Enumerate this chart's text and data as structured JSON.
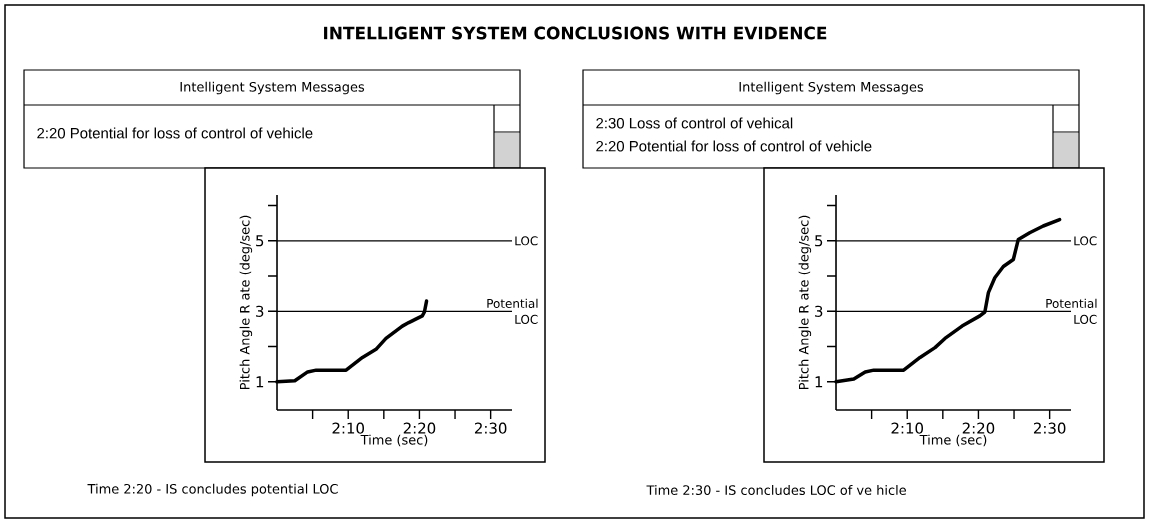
{
  "chart_data": [
    {
      "type": "line",
      "title": "INTELLIGENT SYSTEM CONCLUSIONS WITH EVIDENCE",
      "xlabel": "Time (sec)",
      "ylabel": "Pitch Angle R ate (deg/sec)",
      "color": "#000000",
      "x": [
        120,
        122.5,
        124.3,
        125.5,
        129.7,
        132,
        133.9,
        135.3,
        137.6,
        138.5,
        140.4,
        140.7,
        141
      ],
      "values": [
        1.0,
        1.03,
        1.28,
        1.33,
        1.33,
        1.69,
        1.92,
        2.23,
        2.58,
        2.68,
        2.87,
        2.98,
        3.29
      ],
      "xlim": [
        120,
        153
      ],
      "xticks": [
        {
          "value": 125,
          "label": null
        },
        {
          "value": 130,
          "label": "2:10"
        },
        {
          "value": 135,
          "label": null
        },
        {
          "value": 140,
          "label": "2:20"
        },
        {
          "value": 145,
          "label": null
        },
        {
          "value": 150,
          "label": "2:30"
        }
      ],
      "ylim": [
        0.2,
        6.3
      ],
      "yticks": [
        1,
        {
          "value": 2,
          "label": null
        },
        3,
        {
          "value": 4,
          "label": null
        },
        5,
        {
          "value": 6,
          "label": null
        }
      ],
      "ref_lines": [
        {
          "axis": "y",
          "value": 5,
          "label": "LOC"
        },
        {
          "axis": "y",
          "value": 3,
          "label": "Potential LOC"
        }
      ],
      "annotations": [
        "Intelligent System Messages",
        "2:20 Potential for loss of control of vehicle",
        "Time 2:20 - IS concludes potential LOC"
      ]
    },
    {
      "type": "line",
      "xlabel": "Time (sec)",
      "ylabel": "Pitch Angle R ate (deg/sec)",
      "color": "#000000",
      "x": [
        120,
        122.5,
        124.1,
        125.3,
        129.5,
        131.8,
        133.9,
        135.3,
        137.7,
        140.2,
        140.9,
        141.4,
        142.3,
        143.5,
        144.9,
        145.6,
        147.2,
        149.1,
        151.4
      ],
      "values": [
        1.0,
        1.08,
        1.28,
        1.33,
        1.33,
        1.69,
        1.97,
        2.23,
        2.58,
        2.87,
        2.98,
        3.53,
        3.95,
        4.27,
        4.47,
        5.04,
        5.23,
        5.42,
        5.6
      ],
      "xlim": [
        120,
        153
      ],
      "xticks": [
        {
          "value": 125,
          "label": null
        },
        {
          "value": 130,
          "label": "2:10"
        },
        {
          "value": 135,
          "label": null
        },
        {
          "value": 140,
          "label": "2:20"
        },
        {
          "value": 145,
          "label": null
        },
        {
          "value": 150,
          "label": "2:30"
        }
      ],
      "ylim": [
        0.2,
        6.3
      ],
      "yticks": [
        1,
        {
          "value": 2,
          "label": null
        },
        3,
        {
          "value": 4,
          "label": null
        },
        5,
        {
          "value": 6,
          "label": null
        }
      ],
      "ref_lines": [
        {
          "axis": "y",
          "value": 5,
          "label": "LOC"
        },
        {
          "axis": "y",
          "value": 3,
          "label": "Potential LOC"
        }
      ],
      "annotations": [
        "Intelligent System Messages",
        "2:30 Loss of control of vehical",
        "2:20 Potential for loss of control of vehicle",
        "Time 2:30 - IS concludes LOC of ve hicle"
      ]
    }
  ]
}
